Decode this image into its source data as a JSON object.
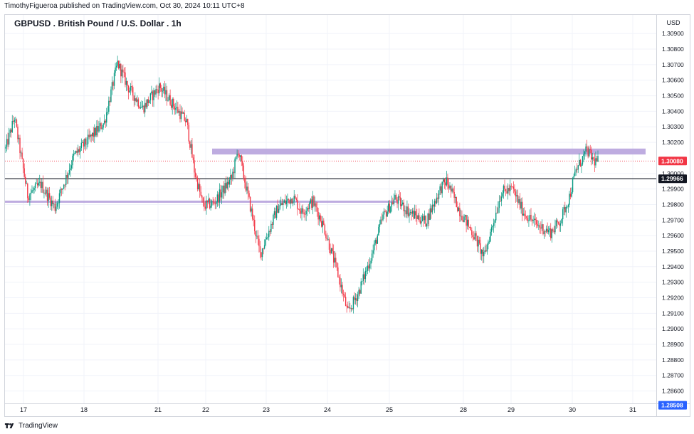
{
  "header": {
    "author": "TimothyFigueroa",
    "published_text": "published on TradingView.com, Oct 30, 2024 10:11 UTC+8"
  },
  "title": "GBPUSD . British Pound / U.S. Dollar . 1h",
  "currency": "USD",
  "footer": {
    "brand": "TradingView"
  },
  "colors": {
    "up": "#089981",
    "down": "#f23645",
    "zone": "#b39ddb",
    "last_price_bg": "#f23645",
    "level_bg": "#131722",
    "low_bg": "#2962ff",
    "grid": "#f0f3fa"
  },
  "icons": [
    "tradingview-logo-icon"
  ],
  "chart_data": {
    "type": "candlestick",
    "symbol": "GBPUSD",
    "interval": "1h",
    "ylim": [
      1.2852,
      1.3102
    ],
    "y_ticks": [
      "1.30900",
      "1.30800",
      "1.30700",
      "1.30600",
      "1.30500",
      "1.30400",
      "1.30300",
      "1.30200",
      "1.30000",
      "1.29900",
      "1.29800",
      "1.29700",
      "1.29600",
      "1.29500",
      "1.29400",
      "1.29300",
      "1.29200",
      "1.29100",
      "1.29000",
      "1.28900",
      "1.28800",
      "1.28700",
      "1.28600"
    ],
    "x_ticks": [
      "17",
      "18",
      "21",
      "22",
      "23",
      "24",
      "25",
      "28",
      "29",
      "30",
      "31"
    ],
    "price_labels": [
      {
        "label": "1.30080",
        "value": 1.3008,
        "style": "last"
      },
      {
        "label": "1.29966",
        "value": 1.29966,
        "style": "level"
      },
      {
        "label": "1.28508",
        "value": 1.28508,
        "style": "low"
      }
    ],
    "horizontal_line": 1.29966,
    "zones": [
      {
        "top": 1.3016,
        "bottom": 1.30122,
        "from": "22",
        "to": "31"
      },
      {
        "top": 1.29825,
        "bottom": 1.29812,
        "from": "17",
        "to": "25"
      }
    ],
    "anchors": [
      [
        0,
        1.3016
      ],
      [
        8,
        1.3036
      ],
      [
        20,
        1.2986
      ],
      [
        32,
        1.2993
      ],
      [
        45,
        1.2978
      ],
      [
        62,
        1.3011
      ],
      [
        90,
        1.3033
      ],
      [
        102,
        1.3071
      ],
      [
        112,
        1.3055
      ],
      [
        125,
        1.3042
      ],
      [
        140,
        1.3056
      ],
      [
        152,
        1.3045
      ],
      [
        165,
        1.3033
      ],
      [
        172,
        1.3002
      ],
      [
        180,
        1.2979
      ],
      [
        190,
        1.2981
      ],
      [
        206,
        1.2997
      ],
      [
        212,
        1.3015
      ],
      [
        222,
        1.2982
      ],
      [
        232,
        1.2948
      ],
      [
        248,
        1.2978
      ],
      [
        262,
        1.2985
      ],
      [
        270,
        1.2975
      ],
      [
        280,
        1.2982
      ],
      [
        290,
        1.2966
      ],
      [
        303,
        1.2935
      ],
      [
        312,
        1.291
      ],
      [
        322,
        1.2924
      ],
      [
        334,
        1.2948
      ],
      [
        344,
        1.2972
      ],
      [
        355,
        1.2984
      ],
      [
        368,
        1.2975
      ],
      [
        383,
        1.2969
      ],
      [
        397,
        1.2991
      ],
      [
        402,
        1.2995
      ],
      [
        414,
        1.2976
      ],
      [
        428,
        1.2959
      ],
      [
        436,
        1.2946
      ],
      [
        444,
        1.2967
      ],
      [
        452,
        1.2988
      ],
      [
        462,
        1.299
      ],
      [
        472,
        1.2975
      ],
      [
        484,
        1.2967
      ],
      [
        497,
        1.2962
      ],
      [
        506,
        1.297
      ],
      [
        514,
        1.2985
      ],
      [
        520,
        1.3002
      ],
      [
        527,
        1.3011
      ],
      [
        530,
        1.3015
      ],
      [
        536,
        1.3008
      ]
    ]
  }
}
